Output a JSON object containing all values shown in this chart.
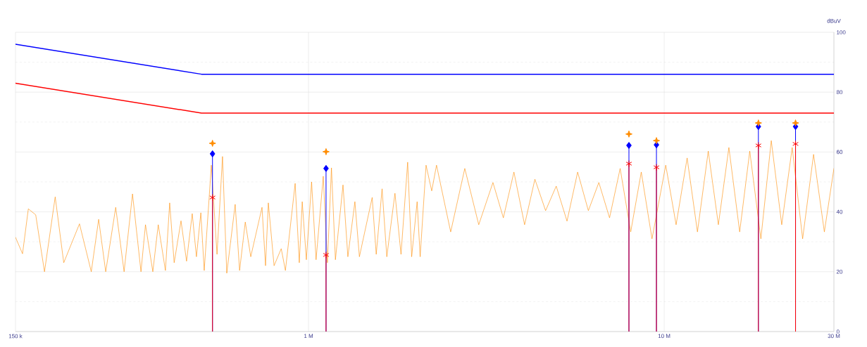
{
  "chart_data": {
    "type": "line",
    "ylabel": "dBuV",
    "log": "x",
    "grid": true,
    "xlim": [
      0.15,
      30
    ],
    "xticks": [
      {
        "value": 0.15,
        "label": "150 k"
      },
      {
        "value": 1,
        "label": "1 M"
      },
      {
        "value": 10,
        "label": "10 M"
      },
      {
        "value": 30,
        "label": "30 M"
      }
    ],
    "ylim": [
      0,
      100
    ],
    "yticks": [
      0,
      20,
      40,
      60,
      80,
      100
    ],
    "series": [
      {
        "color": "#0000ff",
        "x": [
          0.15,
          0.5,
          30
        ],
        "values": [
          96,
          86,
          86
        ]
      },
      {
        "color": "#ff0000",
        "x": [
          0.15,
          0.5,
          30
        ],
        "values": [
          83,
          73,
          73
        ]
      },
      {
        "color": "#ff8c00",
        "marker": "none",
        "x": [
          0.15,
          0.157,
          0.163,
          0.171,
          0.181,
          0.194,
          0.205,
          0.227,
          0.245,
          0.257,
          0.269,
          0.287,
          0.303,
          0.32,
          0.338,
          0.348,
          0.365,
          0.378,
          0.396,
          0.407,
          0.419,
          0.438,
          0.454,
          0.471,
          0.484,
          0.498,
          0.509,
          0.533,
          0.553,
          0.573,
          0.589,
          0.622,
          0.64,
          0.664,
          0.688,
          0.74,
          0.757,
          0.771,
          0.8,
          0.838,
          0.861,
          0.917,
          0.942,
          0.96,
          0.986,
          1.02,
          1.05,
          1.1,
          1.13,
          1.16,
          1.19,
          1.25,
          1.29,
          1.35,
          1.39,
          1.51,
          1.55,
          1.61,
          1.66,
          1.75,
          1.82,
          1.9,
          1.95,
          2.02,
          2.06,
          2.14,
          2.22,
          2.29,
          2.51,
          2.75,
          3.01,
          3.3,
          3.53,
          3.78,
          4.05,
          4.33,
          4.64,
          4.97,
          5.33,
          5.71,
          6.12,
          6.55,
          7.02,
          7.52,
          8.05,
          8.62,
          9.24,
          10.1,
          10.8,
          11.6,
          12.4,
          13.3,
          14.2,
          15.2,
          16.3,
          17.4,
          18.7,
          20.0,
          21.4,
          22.9,
          24.5,
          26.3,
          28.2,
          30
        ],
        "values": [
          31.5,
          26,
          41,
          39,
          20,
          45,
          23,
          36,
          20,
          37.5,
          20,
          41.5,
          20,
          46,
          20,
          35.7,
          20,
          35.7,
          20.4,
          43,
          23,
          37,
          23.5,
          39.4,
          25,
          39.7,
          20.4,
          55.6,
          25.8,
          58.5,
          19.5,
          42.5,
          20.4,
          36.6,
          25,
          41.5,
          22,
          43,
          22,
          27.7,
          20.4,
          49.5,
          23,
          43.4,
          24,
          50,
          24,
          51.9,
          23,
          54.7,
          24,
          49,
          25,
          43.4,
          25,
          44.8,
          25.8,
          47.7,
          25,
          46.2,
          25.8,
          56.6,
          25,
          43.4,
          25,
          55.6,
          47,
          55.6,
          33.3,
          54.5,
          35.7,
          49.8,
          38,
          53.3,
          35.7,
          50.9,
          40.4,
          48.6,
          36.9,
          53.3,
          40.4,
          49.8,
          38,
          54.5,
          33.3,
          53.3,
          31,
          55.6,
          35.7,
          58,
          33.3,
          60.3,
          35.7,
          61.5,
          33.3,
          60.3,
          31,
          63.8,
          35.7,
          61.5,
          31,
          59.2,
          33.3,
          54.5
        ]
      },
      {
        "type": "lollipop",
        "color": "#0000ff",
        "marker": "diamond",
        "x": [
          0.537,
          1.12,
          7.96,
          9.51,
          18.4,
          23.4
        ],
        "values": [
          59.4,
          54.5,
          62.2,
          62.4,
          68.5,
          68.5
        ]
      },
      {
        "type": "lollipop",
        "color": "#ff0000",
        "marker": "cross",
        "x": [
          0.537,
          1.12,
          7.96,
          9.51,
          18.4,
          23.4
        ],
        "values": [
          44.8,
          25.6,
          56.1,
          54.9,
          62.2,
          62.7
        ]
      },
      {
        "type": "scatter",
        "color": "#ff8c00",
        "marker": "star",
        "x": [
          0.537,
          1.12,
          7.96,
          9.51,
          18.4,
          23.4
        ],
        "values": [
          62.9,
          60.1,
          66,
          63.8,
          69.7,
          69.7
        ]
      }
    ]
  }
}
